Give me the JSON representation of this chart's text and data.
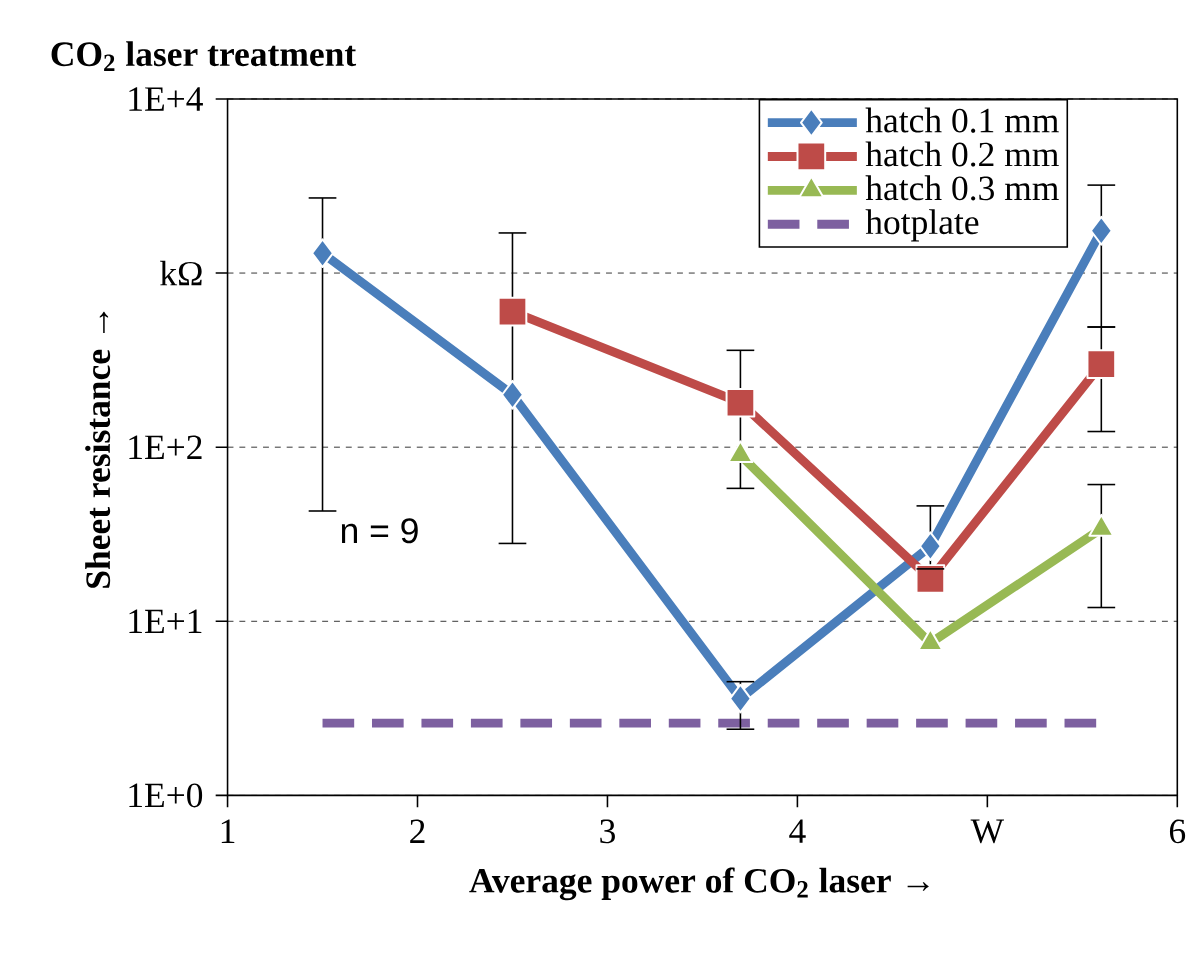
{
  "chart_data": {
    "type": "line",
    "title": "CO$_{2}$ laser treatment",
    "xlabel": "Average power of CO$_{2}$ laser →",
    "ylabel": "Sheet resistance →",
    "annotations": [
      "n = 9"
    ],
    "log": "y",
    "grid": "y",
    "legend": "top right",
    "xlim": [
      1,
      6
    ],
    "xticks": [
      1,
      2,
      3,
      4,
      {
        "value": 5,
        "label": "W"
      },
      6
    ],
    "ylim": [
      1,
      10000
    ],
    "yticks": [
      {
        "value": 1,
        "label": "1E+0"
      },
      {
        "value": 10,
        "label": "1E+1"
      },
      {
        "value": 100,
        "label": "1E+2"
      },
      {
        "value": 1000,
        "label": "kΩ"
      },
      {
        "value": 10000,
        "label": "1E+4"
      }
    ],
    "series": [
      {
        "name": "hatch 0.1 mm",
        "color": "#4a7ebb",
        "marker": "diamond",
        "line_style": "solid",
        "x": [
          1.5,
          2.5,
          3.7,
          4.7,
          5.6
        ],
        "values": [
          1300,
          200,
          3.6,
          27,
          1750
        ],
        "errors": [
          [
            43,
            2700
          ],
          [
            28,
            1700
          ],
          [
            2.4,
            4.5
          ],
          [
            20,
            46
          ],
          [
            490,
            3200
          ]
        ]
      },
      {
        "name": "hatch 0.2 mm",
        "color": "#be4b48",
        "marker": "square",
        "line_style": "solid",
        "x": [
          2.5,
          3.7,
          4.7,
          5.6
        ],
        "values": [
          600,
          180,
          17.5,
          300
        ],
        "errors": [
          null,
          [
            58,
            360
          ],
          null,
          [
            123,
            490
          ]
        ]
      },
      {
        "name": "hatch 0.3 mm",
        "color": "#98b954",
        "marker": "triangle",
        "line_style": "solid",
        "x": [
          3.7,
          4.7,
          5.6
        ],
        "values": [
          90,
          7.5,
          34
        ],
        "errors": [
          null,
          null,
          [
            12,
            61
          ]
        ]
      },
      {
        "name": "hotplate",
        "color": "#7d60a0",
        "marker": "none",
        "line_style": "dashed",
        "x": [
          1.5,
          2.5,
          3.7,
          4.7,
          5.6
        ],
        "values": [
          2.6,
          2.6,
          2.6,
          2.6,
          2.6
        ]
      }
    ]
  }
}
